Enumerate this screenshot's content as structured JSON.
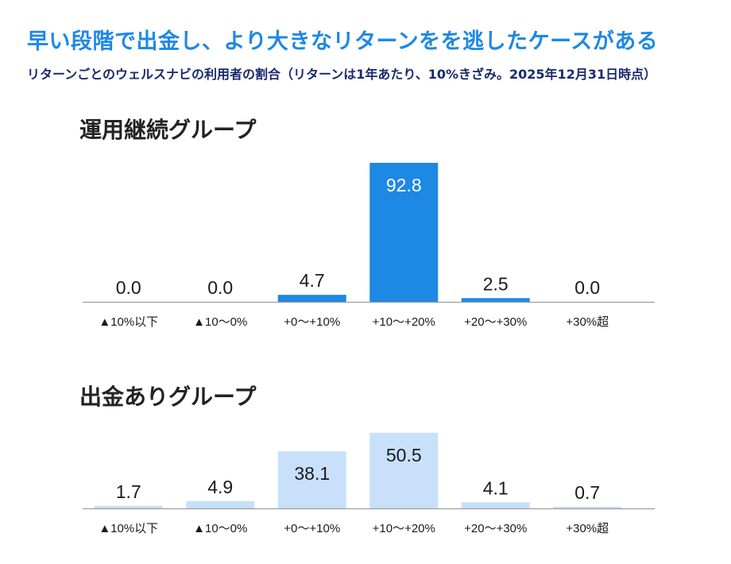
{
  "header": {
    "title": "早い段階で出金し、より大きなリターンをを逃したケースがある",
    "subtitle": "リターンごとのウェルスナビの利用者の割合（リターンは1年あたり、10%きざみ。2025年12月31日時点）"
  },
  "chart_data": [
    {
      "type": "bar",
      "title": "運用継続グループ",
      "categories": [
        "▲10%以下",
        "▲10～0%",
        "+0～+10%",
        "+10～+20%",
        "+20～+30%",
        "+30%超"
      ],
      "values": [
        0.0,
        0.0,
        4.7,
        92.8,
        2.5,
        0.0
      ],
      "value_labels": [
        "0.0",
        "0.0",
        "4.7",
        "92.8",
        "2.5",
        "0.0"
      ],
      "bar_color": "#1e88e5",
      "ylim": [
        0,
        92.8
      ],
      "grid": false,
      "legend": "none"
    },
    {
      "type": "bar",
      "title": "出金ありグループ",
      "categories": [
        "▲10%以下",
        "▲10～0%",
        "+0～+10%",
        "+10～+20%",
        "+20～+30%",
        "+30%超"
      ],
      "values": [
        1.7,
        4.9,
        38.1,
        50.5,
        4.1,
        0.7
      ],
      "value_labels": [
        "1.7",
        "4.9",
        "38.1",
        "50.5",
        "4.1",
        "0.7"
      ],
      "bar_color": "#c8e0fa",
      "ylim": [
        0,
        92.8
      ],
      "grid": false,
      "legend": "none"
    }
  ]
}
